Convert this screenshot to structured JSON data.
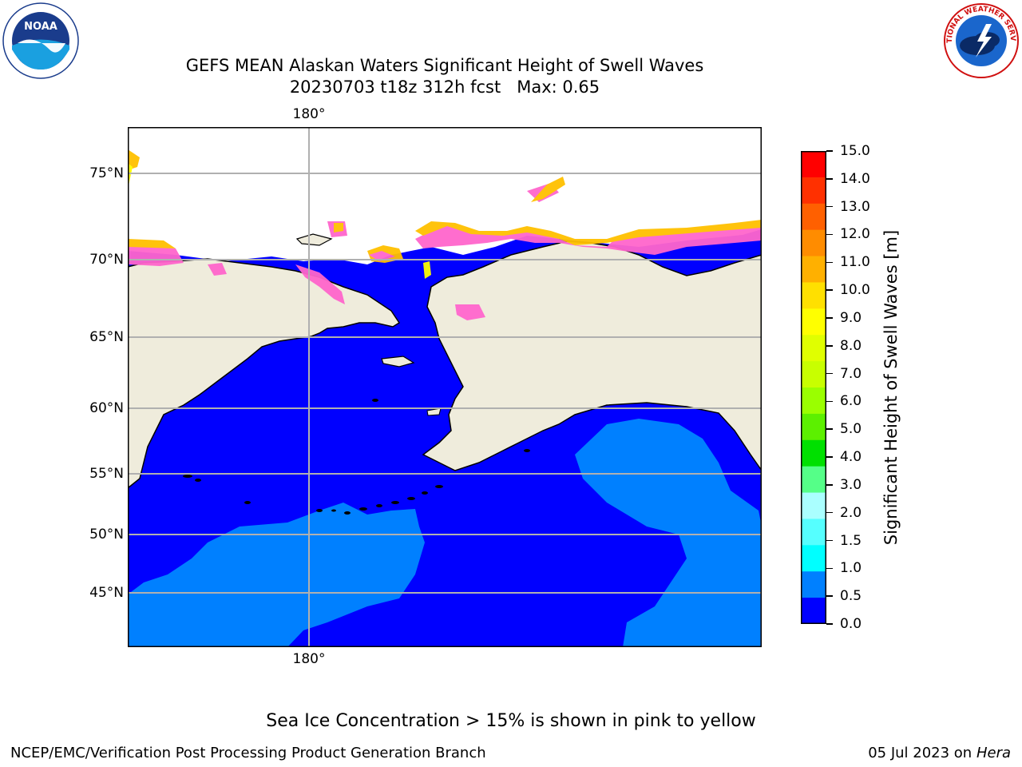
{
  "title": {
    "line1": "GEFS MEAN Alaskan Waters Significant Height of Swell Waves",
    "line2": "20230703 t18z 312h fcst   Max: 0.65"
  },
  "map": {
    "lat_labels": [
      "75°N",
      "70°N",
      "65°N",
      "60°N",
      "55°N",
      "50°N",
      "45°N"
    ],
    "lon_label_top": "180°",
    "lon_label_bottom": "180°",
    "land_color": "#efecdc",
    "ocean_low_color": "#0000ff",
    "ocean_mid_color": "#0080ff",
    "ice_colors": [
      "#ff66cc",
      "#ffc000",
      "#ffff00"
    ]
  },
  "colorbar": {
    "label": "Significant Height of Swell Waves [m]",
    "ticks": [
      "15.0",
      "14.0",
      "13.0",
      "12.0",
      "11.0",
      "10.0",
      "9.0",
      "8.0",
      "7.0",
      "6.0",
      "5.0",
      "4.0",
      "3.0",
      "2.0",
      "1.5",
      "1.0",
      "0.5",
      "0.0"
    ],
    "colors": [
      "#ff0000",
      "#ff3000",
      "#ff6000",
      "#ff8c00",
      "#ffb000",
      "#ffe000",
      "#ffff00",
      "#e0ff00",
      "#c8ff00",
      "#9aff00",
      "#5cf000",
      "#00e000",
      "#55ff88",
      "#aaffff",
      "#55ffff",
      "#00ffff",
      "#0080ff",
      "#0000ff"
    ]
  },
  "footnote": "Sea Ice Concentration > 15% is shown in pink to yellow",
  "credit_left": "NCEP/EMC/Verification Post Processing Product Generation Branch",
  "credit_right_date": "05 Jul 2023 on ",
  "credit_right_host": "Hera",
  "logos": {
    "noaa_text": "NOAA",
    "nws_text": "NATIONAL WEATHER SERVICE"
  }
}
